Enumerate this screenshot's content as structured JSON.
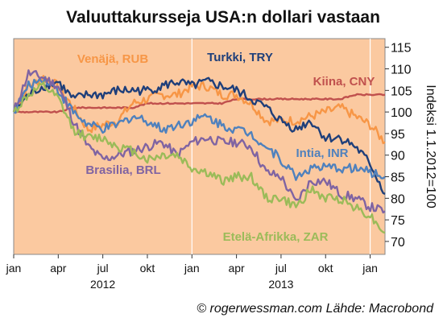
{
  "chart_data": {
    "type": "line",
    "title": "Valuuttakursseja USA:n dollari vastaan",
    "ylabel": "Indeksi 1.1.2012=100",
    "source": "© rogerwessman.com Lähde: Macrobond",
    "ylim": [
      67,
      117
    ],
    "yticks": [
      70,
      75,
      80,
      85,
      90,
      95,
      100,
      105,
      110,
      115
    ],
    "x_months": [
      "2012-01",
      "2012-02",
      "2012-03",
      "2012-04",
      "2012-05",
      "2012-06",
      "2012-07",
      "2012-08",
      "2012-09",
      "2012-10",
      "2012-11",
      "2012-12",
      "2013-01",
      "2013-02",
      "2013-03",
      "2013-04",
      "2013-05",
      "2013-06",
      "2013-07",
      "2013-08",
      "2013-09",
      "2013-10",
      "2013-11",
      "2013-12",
      "2014-01",
      "2014-02"
    ],
    "x_ticks": [
      {
        "month": "2012-01",
        "label": "jan"
      },
      {
        "month": "2012-04",
        "label": "apr"
      },
      {
        "month": "2012-07",
        "label": "jul"
      },
      {
        "month": "2012-10",
        "label": "okt"
      },
      {
        "month": "2013-01",
        "label": "jan"
      },
      {
        "month": "2013-04",
        "label": "apr"
      },
      {
        "month": "2013-07",
        "label": "jul"
      },
      {
        "month": "2013-10",
        "label": "okt"
      },
      {
        "month": "2014-01",
        "label": "jan"
      }
    ],
    "year_labels": [
      {
        "month": "2012-07",
        "label": "2012"
      },
      {
        "month": "2013-07",
        "label": "2013"
      }
    ],
    "year_separators": [
      "2013-01",
      "2014-01"
    ],
    "background_color": "#fbc9a0",
    "grid": false,
    "series": [
      {
        "name": "Venäjä, RUB",
        "color": "#f79646",
        "values": [
          100,
          106,
          108,
          106,
          101,
          96,
          97,
          98,
          102,
          103,
          104,
          104,
          106,
          106,
          104,
          104,
          102,
          98,
          98,
          98,
          99,
          100,
          101,
          99,
          97,
          93
        ]
      },
      {
        "name": "Turkki, TRY",
        "color": "#1f3f7a",
        "values": [
          100,
          104,
          106,
          107,
          103,
          104,
          104,
          105,
          105,
          105,
          106,
          107,
          106,
          107,
          106,
          105,
          103,
          101,
          98,
          96,
          98,
          94,
          94,
          92,
          88,
          81
        ]
      },
      {
        "name": "Kiina, CNY",
        "color": "#c0504d",
        "values": [
          100,
          100,
          100,
          100,
          101,
          101,
          101,
          101,
          101,
          102,
          102,
          102,
          102,
          102,
          102,
          103,
          103,
          103,
          103,
          103,
          103,
          103,
          103,
          104,
          104,
          104
        ]
      },
      {
        "name": "Intia, INR",
        "color": "#4f81bd",
        "values": [
          100,
          106,
          108,
          105,
          100,
          97,
          96,
          97,
          99,
          98,
          96,
          97,
          98,
          99,
          97,
          96,
          95,
          92,
          89,
          85,
          87,
          87,
          87,
          87,
          86,
          85
        ]
      },
      {
        "name": "Brasilia, BRL",
        "color": "#8064a2",
        "values": [
          100,
          109,
          108,
          106,
          98,
          92,
          89,
          90,
          91,
          92,
          93,
          90,
          93,
          94,
          93,
          93,
          92,
          86,
          85,
          79,
          84,
          84,
          81,
          80,
          78,
          77
        ]
      },
      {
        "name": "Etelä-Afrikka, ZAR",
        "color": "#9bbb59",
        "values": [
          100,
          104,
          106,
          103,
          96,
          94,
          94,
          92,
          91,
          89,
          90,
          90,
          87,
          86,
          84,
          85,
          85,
          80,
          80,
          78,
          82,
          80,
          80,
          78,
          76,
          72
        ]
      }
    ]
  }
}
